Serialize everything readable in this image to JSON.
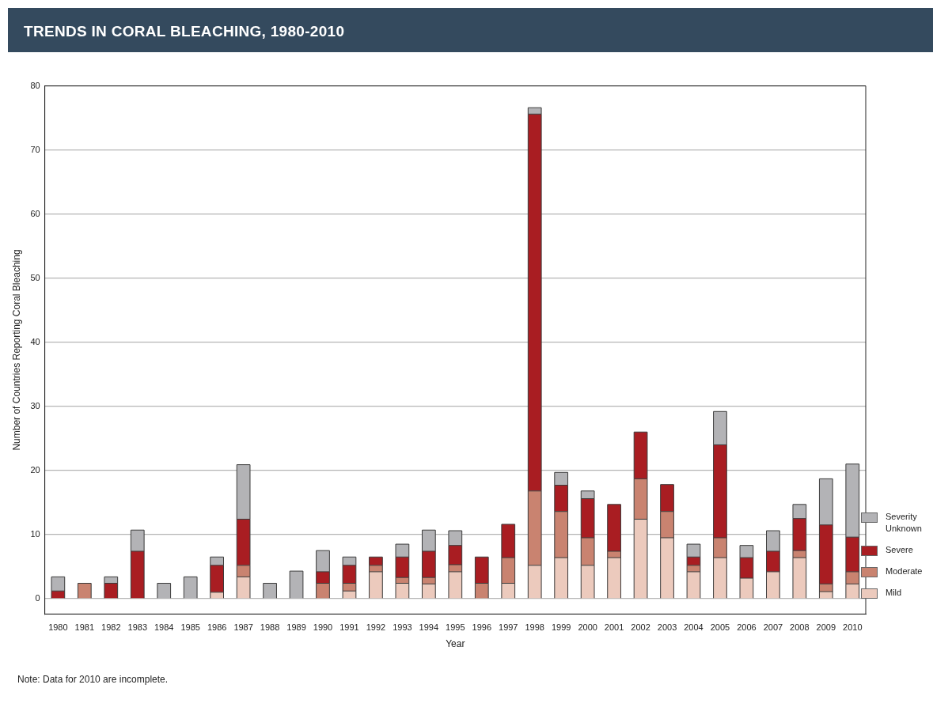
{
  "chart_data": {
    "type": "bar",
    "title": "TRENDS IN CORAL BLEACHING, 1980-2010",
    "xlabel": "Year",
    "ylabel": "Number of Countries Reporting Coral Bleaching",
    "categories": [
      "1980",
      "1981",
      "1982",
      "1983",
      "1984",
      "1985",
      "1986",
      "1987",
      "1988",
      "1989",
      "1990",
      "1991",
      "1992",
      "1993",
      "1994",
      "1995",
      "1996",
      "1997",
      "1998",
      "1999",
      "2000",
      "2001",
      "2002",
      "2003",
      "2004",
      "2005",
      "2006",
      "2007",
      "2008",
      "2009",
      "2010"
    ],
    "stacked": true,
    "series": [
      {
        "name": "Mild",
        "color": "#eccabd",
        "values": [
          null,
          null,
          null,
          null,
          null,
          null,
          1.0,
          3.4,
          null,
          null,
          null,
          1.2,
          4.2,
          2.4,
          2.3,
          4.2,
          null,
          2.4,
          5.2,
          6.4,
          5.2,
          6.4,
          12.4,
          9.5,
          4.2,
          6.4,
          3.2,
          4.2,
          6.4,
          1.1,
          2.3
        ]
      },
      {
        "name": "Moderate",
        "color": "#c98370",
        "values": [
          null,
          2.4,
          null,
          null,
          null,
          null,
          null,
          1.8,
          null,
          null,
          2.4,
          1.2,
          1.0,
          0.9,
          1.0,
          1.1,
          2.4,
          4.0,
          11.6,
          7.2,
          4.3,
          1.0,
          6.3,
          4.1,
          1.0,
          3.1,
          null,
          null,
          1.1,
          1.2,
          1.9
        ]
      },
      {
        "name": "Severe",
        "color": "#a91d22",
        "values": [
          1.2,
          null,
          2.4,
          7.4,
          null,
          null,
          4.2,
          7.2,
          null,
          null,
          1.8,
          2.8,
          1.3,
          3.2,
          4.1,
          3.0,
          4.1,
          5.2,
          58.8,
          4.1,
          6.1,
          7.3,
          7.3,
          4.2,
          1.3,
          14.5,
          3.2,
          3.2,
          5.0,
          9.2,
          5.4
        ]
      },
      {
        "name": "Severity Unknown",
        "color": "#b3b3b6",
        "values": [
          2.2,
          null,
          1.0,
          3.3,
          2.4,
          3.4,
          1.3,
          8.5,
          2.4,
          4.3,
          3.3,
          1.3,
          null,
          2.0,
          3.3,
          2.3,
          null,
          null,
          1.0,
          2.0,
          1.2,
          null,
          null,
          null,
          2.0,
          5.2,
          1.9,
          3.2,
          2.2,
          7.2,
          11.4
        ]
      }
    ],
    "ylim": [
      -2.4,
      80
    ],
    "yticks": [
      0,
      10,
      20,
      30,
      40,
      50,
      60,
      70,
      80
    ],
    "grid": "y",
    "legend": "right",
    "annotations": [
      "Note: Data for 2010 are incomplete."
    ]
  }
}
